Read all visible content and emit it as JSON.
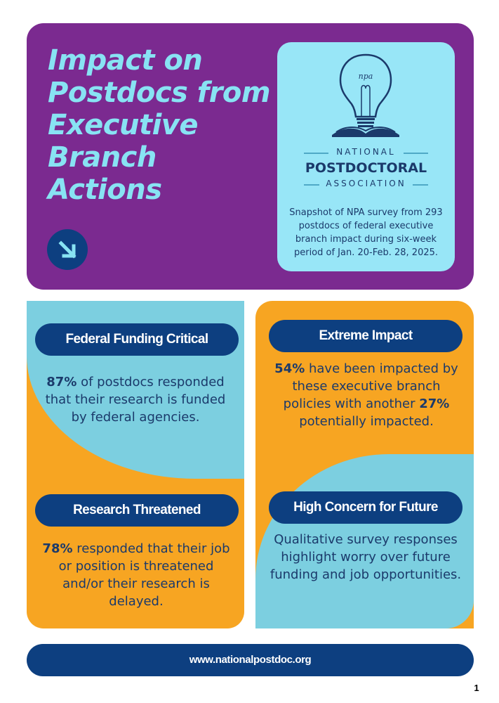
{
  "hero": {
    "title": "Impact on Postdocs from Executive Branch Actions",
    "logo": {
      "line1": "NATIONAL",
      "line2": "POSTDOCTORAL",
      "line3": "ASSOCIATION",
      "bulb_text": "npa",
      "icon": "lightbulb-book-icon"
    },
    "description": "Snapshot of NPA survey from 293 postdocs of federal executive branch impact during six-week period of Jan. 20-Feb. 28, 2025."
  },
  "cards": {
    "federal_funding": {
      "heading": "Federal Funding Critical",
      "stat": "87%",
      "text": " of postdocs responded that their research is funded by federal agencies."
    },
    "research_threatened": {
      "heading": "Research Threatened",
      "stat": "78%",
      "text": " responded that their job or position is threatened and/or their research is delayed."
    },
    "extreme_impact": {
      "heading": "Extreme Impact",
      "stat1": "54%",
      "text1": " have been impacted by these executive branch policies with another ",
      "stat2": "27%",
      "text2": " potentially impacted."
    },
    "high_concern": {
      "heading": "High Concern for Future",
      "text": "Qualitative survey responses highlight worry over future funding and job opportunities."
    }
  },
  "footer": {
    "url": "www.nationalpostdoc.org"
  },
  "page_number": "1",
  "colors": {
    "purple": "#7b2a90",
    "light_blue": "#88e3f3",
    "card_blue": "#7ccfe0",
    "orange": "#f7a522",
    "navy": "#0d3f80",
    "text_navy": "#1b3a6b"
  }
}
